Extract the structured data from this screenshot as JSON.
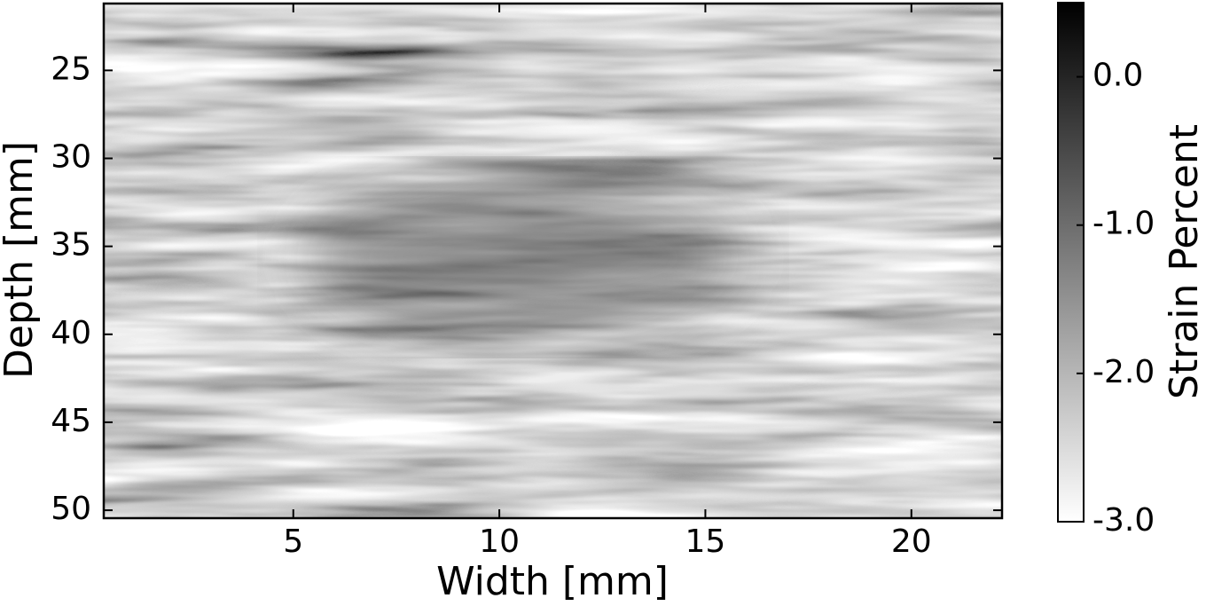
{
  "chart_data": {
    "type": "heatmap",
    "xlabel": "Width [mm]",
    "ylabel": "Depth [mm]",
    "xlim": [
      0.4,
      22.2
    ],
    "xticks": [
      5,
      10,
      15,
      20
    ],
    "ylim": [
      21.2,
      50.45
    ],
    "yticks": [
      25,
      30,
      35,
      40,
      45,
      50
    ],
    "colormap": "gray_r",
    "colorbar": {
      "label": "Strain Percent",
      "clim": [
        -3,
        0.5
      ],
      "ticks": [
        {
          "value": 0,
          "label": "0.0"
        },
        {
          "value": -1,
          "label": "-1.0"
        },
        {
          "value": -2,
          "label": "-2.0"
        },
        {
          "value": -3,
          "label": "-3.0"
        }
      ]
    }
  }
}
